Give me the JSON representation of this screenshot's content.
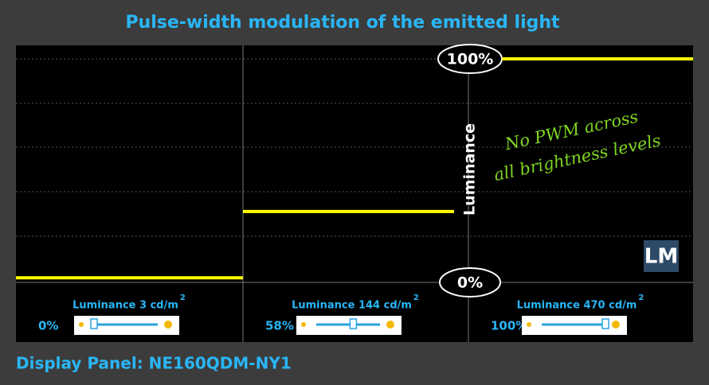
{
  "title": "Pulse-width modulation of the emitted light",
  "footer": "Display Panel: NE160QDM-NY1",
  "axis": {
    "label": "Luminance",
    "top_marker": "100%",
    "bottom_marker": "0%"
  },
  "annotation": [
    "No PWM across",
    "all brightness levels"
  ],
  "logo": "LM",
  "panels": [
    {
      "luminance_label": "Luminance 3 cd/m",
      "unit_exponent": "2",
      "brightness": {
        "value": 0,
        "label": "0%"
      },
      "signal_level": 1
    },
    {
      "luminance_label": "Luminance 144 cd/m",
      "unit_exponent": "2",
      "brightness": {
        "value": 58,
        "label": "58%"
      },
      "signal_level": 31
    },
    {
      "luminance_label": "Luminance 470 cd/m",
      "unit_exponent": "2",
      "brightness": {
        "value": 100,
        "label": "100%"
      },
      "signal_level": 100
    }
  ]
}
